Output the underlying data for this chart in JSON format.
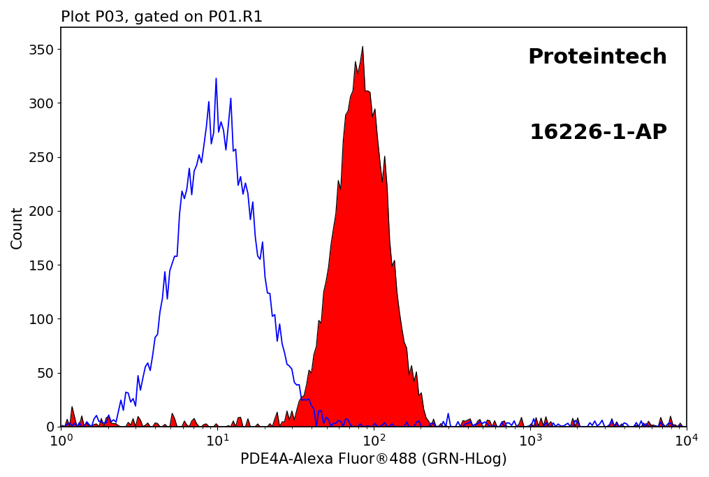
{
  "title": "Plot P03, gated on P01.R1",
  "xlabel": "PDE4A-Alexa Fluor®488 (GRN-HLog)",
  "ylabel": "Count",
  "ylim": [
    0,
    370
  ],
  "yticks": [
    0,
    50,
    100,
    150,
    200,
    250,
    300,
    350
  ],
  "annotation_line1": "Proteintech",
  "annotation_line2": "16226-1-AP",
  "blue_color": "#0000ff",
  "red_color": "#ff0000",
  "black_color": "#000000",
  "bg_color": "#ffffff",
  "title_fontsize": 16,
  "label_fontsize": 15,
  "tick_fontsize": 14,
  "annotation_fontsize": 22,
  "blue_peak_log": 1.0,
  "blue_peak_count": 320,
  "blue_log_std": 0.25,
  "red_peak_log": 1.92,
  "red_peak_count": 350,
  "red_log_std": 0.16,
  "n_samples": 12000,
  "n_bins": 256,
  "seed": 77
}
